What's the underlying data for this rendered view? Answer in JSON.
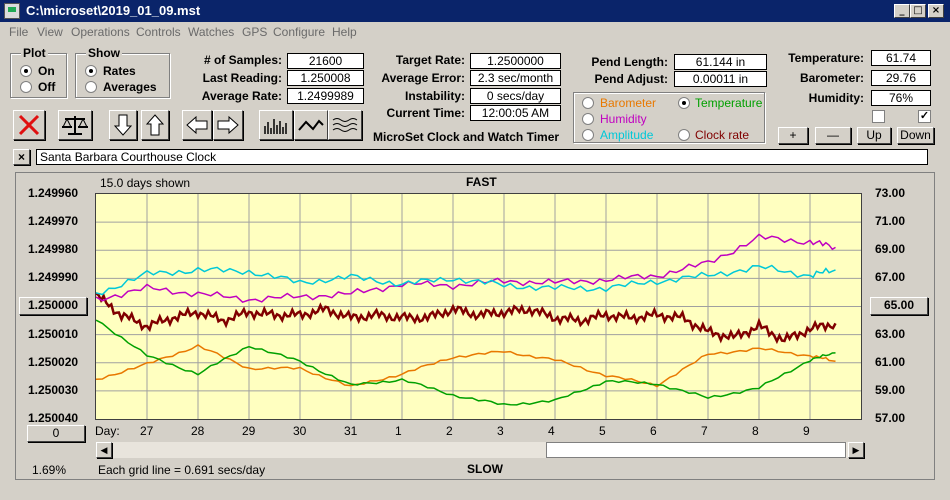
{
  "window": {
    "title": "C:\\microset\\2019_01_09.mst"
  },
  "menu": [
    "File",
    "View",
    "Operations",
    "Controls",
    "Watches",
    "GPS",
    "Configure",
    "Help"
  ],
  "plot_group": {
    "title": "Plot",
    "options": [
      "On",
      "Off"
    ],
    "selected": "On"
  },
  "show_group": {
    "title": "Show",
    "options": [
      "Rates",
      "Averages"
    ],
    "selected": "Rates"
  },
  "stats": [
    {
      "label": "# of Samples:",
      "value": "21600"
    },
    {
      "label": "Last Reading:",
      "value": "1.250008"
    },
    {
      "label": "Average Rate:",
      "value": "1.2499989"
    }
  ],
  "rates": [
    {
      "label": "Target Rate:",
      "value": "1.2500000"
    },
    {
      "label": "Average Error:",
      "value": "2.3 sec/month"
    },
    {
      "label": "Instability:",
      "value": "0 secs/day"
    },
    {
      "label": "Current Time:",
      "value": "12:00:05 AM"
    }
  ],
  "app_caption": "MicroSet Clock and Watch Timer",
  "pendulum": [
    {
      "label": "Pend Length:",
      "value": "61.144 in"
    },
    {
      "label": "Pend Adjust:",
      "value": "0.00011 in"
    }
  ],
  "environment": [
    {
      "label": "Temperature:",
      "value": "61.74"
    },
    {
      "label": "Barometer:",
      "value": "29.76"
    },
    {
      "label": "Humidity:",
      "value": "76%"
    }
  ],
  "overlay_options": [
    {
      "label": "Barometer",
      "color": "#e87800",
      "selected": false
    },
    {
      "label": "Temperature",
      "color": "#00a000",
      "selected": true
    },
    {
      "label": "Humidity",
      "color": "#c000c0",
      "selected": false
    },
    {
      "label": "Clock rate",
      "color": "#800000",
      "selected": false
    },
    {
      "label": "Amplitude",
      "color": "#00c8d8",
      "selected": false
    }
  ],
  "checkboxes": [
    false,
    true
  ],
  "adjust_buttons": [
    "+",
    "—",
    "Up",
    "Down"
  ],
  "clock_name": "Santa Barbara Courthouse Clock",
  "chart_data": {
    "type": "line",
    "days_shown": "15.0 days shown",
    "top_label": "FAST",
    "bottom_label": "SLOW",
    "grid_note": "Each grid line = 0.691 secs/day",
    "percent": "1.69%",
    "day_label": "Day:",
    "left_ticks": [
      "1.249960",
      "1.249970",
      "1.249980",
      "1.249990",
      "1.250000",
      "1.250010",
      "1.250020",
      "1.250030",
      "1.250040"
    ],
    "left_center_button": "1.250000",
    "right_ticks": [
      "73.00",
      "71.00",
      "69.00",
      "67.00",
      "65.00",
      "63.00",
      "61.00",
      "59.00",
      "57.00"
    ],
    "right_center_button": "65.00",
    "bottom_left_button": "0",
    "x_ticks": [
      "27",
      "28",
      "29",
      "30",
      "31",
      "1",
      "2",
      "3",
      "4",
      "5",
      "6",
      "7",
      "8",
      "9"
    ],
    "left_ylim": [
      1.24996,
      1.25004
    ],
    "right_ylim": [
      57,
      73
    ],
    "series": [
      {
        "name": "Clock rate",
        "color": "#800000",
        "x": [
          0,
          0.5,
          1,
          1.5,
          2,
          2.5,
          3,
          3.5,
          4,
          4.5,
          5,
          5.5,
          6,
          6.5,
          7,
          7.5,
          8,
          8.5,
          9,
          9.5,
          10,
          10.5,
          11,
          11.5,
          12,
          12.5,
          13,
          13.5,
          14,
          14.5
        ],
        "values": [
          1.249996,
          1.250003,
          1.250007,
          1.250004,
          1.250002,
          1.250005,
          1.250002,
          1.250003,
          1.250003,
          1.250001,
          1.250004,
          1.250003,
          1.250004,
          1.250004,
          1.250001,
          1.250003,
          1.250002,
          1.250001,
          1.250004,
          1.250005,
          1.250003,
          1.250004,
          1.250003,
          1.250004,
          1.250009,
          1.250011,
          1.250007,
          1.250012,
          1.250008,
          1.250006
        ]
      },
      {
        "name": "Humidity",
        "color": "#c000c0",
        "x": [
          0,
          1,
          2,
          3,
          4,
          5,
          6,
          7,
          8,
          9,
          10,
          11,
          12,
          13,
          14,
          14.5
        ],
        "values": [
          65.5,
          66.3,
          65.9,
          65.5,
          65.7,
          65.9,
          66.6,
          66.5,
          66.8,
          66.7,
          66.9,
          67.2,
          68.1,
          69.9,
          69.6,
          69.2
        ]
      },
      {
        "name": "Amplitude",
        "color": "#00c8d8",
        "x": [
          0,
          1,
          2,
          3,
          4,
          5,
          6,
          7,
          8,
          9,
          10,
          11,
          12,
          13,
          14,
          14.5
        ],
        "values": [
          65.9,
          67.3,
          67.6,
          67.5,
          66.7,
          67.1,
          66.6,
          67.0,
          66.5,
          66.3,
          66.3,
          66.8,
          67.2,
          67.8,
          67.2,
          67.6
        ]
      },
      {
        "name": "Barometer",
        "color": "#e87800",
        "x": [
          0,
          1,
          2,
          3,
          4,
          5,
          6,
          7,
          8,
          9,
          10,
          11,
          12,
          13,
          14,
          14.5
        ],
        "values": [
          59.8,
          60.9,
          62.2,
          60.6,
          60.6,
          59.3,
          60.2,
          61.4,
          61.8,
          61.2,
          60.1,
          59.4,
          61.6,
          62.0,
          61.5,
          61.1
        ]
      },
      {
        "name": "Temperature",
        "color": "#00a000",
        "x": [
          0,
          1,
          2,
          3,
          4,
          5,
          6,
          7,
          8,
          9,
          10,
          11,
          12,
          13,
          14,
          14.5
        ],
        "values": [
          64.1,
          61.5,
          60.2,
          62.2,
          61.1,
          59.4,
          59.8,
          58.7,
          58.0,
          58.3,
          59.7,
          59.5,
          58.5,
          59.2,
          61.2,
          61.7
        ]
      }
    ]
  }
}
